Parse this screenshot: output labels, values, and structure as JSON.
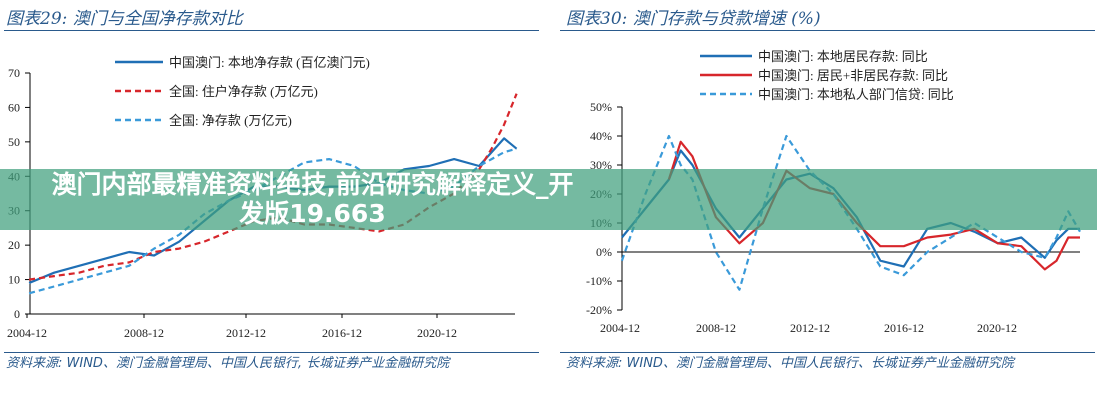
{
  "banner": {
    "text": "澳门内部最精准资料绝技,前沿研究解释定义_开发版19.663"
  },
  "chart_data": [
    {
      "type": "line",
      "title": "图表29:  澳门与全国净存款对比",
      "source": "资料来源: WIND、澳门金融管理局、中国人民银行, 长城证券产业金融研究院",
      "ylim": [
        0,
        70
      ],
      "yticks": [
        "0",
        "10",
        "20",
        "30",
        "40",
        "50",
        "60",
        "70"
      ],
      "xticks": [
        "2004-12",
        "2008-12",
        "2012-12",
        "2016-12",
        "2020-12"
      ],
      "legend_position": "top-left",
      "x": [
        "2004-12",
        "2005-12",
        "2006-12",
        "2007-12",
        "2008-12",
        "2009-12",
        "2010-12",
        "2011-12",
        "2012-12",
        "2013-12",
        "2014-12",
        "2015-12",
        "2016-12",
        "2017-12",
        "2018-12",
        "2019-12",
        "2020-12",
        "2021-12",
        "2022-12",
        "2023-06",
        "2023-12",
        "2024-06"
      ],
      "series": [
        {
          "name": "中国澳门: 本地净存款 (百亿澳门元)",
          "color": "#1f6fb5",
          "style": "solid",
          "values": [
            9,
            12,
            14,
            16,
            18,
            17,
            21,
            27,
            33,
            37,
            37,
            36,
            37,
            37,
            38,
            42,
            43,
            45,
            43,
            47,
            51,
            48
          ]
        },
        {
          "name": "全国: 住户净存款 (万亿元)",
          "color": "#d7262b",
          "style": "dashed",
          "values": [
            10,
            11,
            12,
            14,
            15,
            18,
            19,
            21,
            24,
            27,
            28,
            26,
            26,
            25,
            24,
            26,
            31,
            35,
            42,
            48,
            55,
            64
          ]
        },
        {
          "name": "全国: 净存款 (万亿元)",
          "color": "#3a9ad9",
          "style": "dashed",
          "values": [
            6,
            8,
            10,
            12,
            14,
            19,
            23,
            29,
            33,
            36,
            40,
            44,
            45,
            43,
            38,
            36,
            35,
            37,
            43,
            45,
            47,
            48
          ]
        }
      ]
    },
    {
      "type": "line",
      "title": "图表30:  澳门存款与贷款增速 (%)",
      "source": "资料来源: WIND、澳门金融管理局、中国人民银行、长城证券产业金融研究院",
      "ylim": [
        -20,
        50
      ],
      "yticks": [
        "-20%",
        "-10%",
        "0%",
        "10%",
        "20%",
        "30%",
        "40%",
        "50%"
      ],
      "xticks": [
        "2004-12",
        "2008-12",
        "2012-12",
        "2016-12",
        "2020-12"
      ],
      "legend_position": "top",
      "x": [
        "2004-12",
        "2005-12",
        "2006-12",
        "2007-06",
        "2007-12",
        "2008-12",
        "2009-12",
        "2010-12",
        "2011-12",
        "2012-12",
        "2013-12",
        "2014-12",
        "2015-12",
        "2016-12",
        "2017-12",
        "2018-12",
        "2019-12",
        "2020-12",
        "2021-12",
        "2022-12",
        "2023-06",
        "2023-12",
        "2024-06"
      ],
      "series": [
        {
          "name": "中国澳门: 本地居民存款: 同比",
          "color": "#1f6fb5",
          "style": "solid",
          "values": [
            5,
            15,
            25,
            35,
            30,
            15,
            5,
            15,
            25,
            27,
            22,
            12,
            -3,
            -5,
            8,
            10,
            7,
            3,
            5,
            -2,
            4,
            8,
            8
          ]
        },
        {
          "name": "中国澳门: 居民+非居民存款: 同比",
          "color": "#d7262b",
          "style": "solid",
          "values": [
            null,
            null,
            25,
            38,
            33,
            12,
            3,
            10,
            28,
            22,
            20,
            10,
            2,
            2,
            5,
            6,
            8,
            3,
            2,
            -6,
            -3,
            5,
            5
          ]
        },
        {
          "name": "中国澳门: 本地私人部门信贷: 同比",
          "color": "#3a9ad9",
          "style": "dashed",
          "values": [
            -3,
            20,
            40,
            30,
            25,
            0,
            -13,
            15,
            40,
            28,
            20,
            8,
            -5,
            -8,
            0,
            5,
            10,
            5,
            0,
            -2,
            5,
            14,
            7
          ]
        }
      ]
    }
  ]
}
